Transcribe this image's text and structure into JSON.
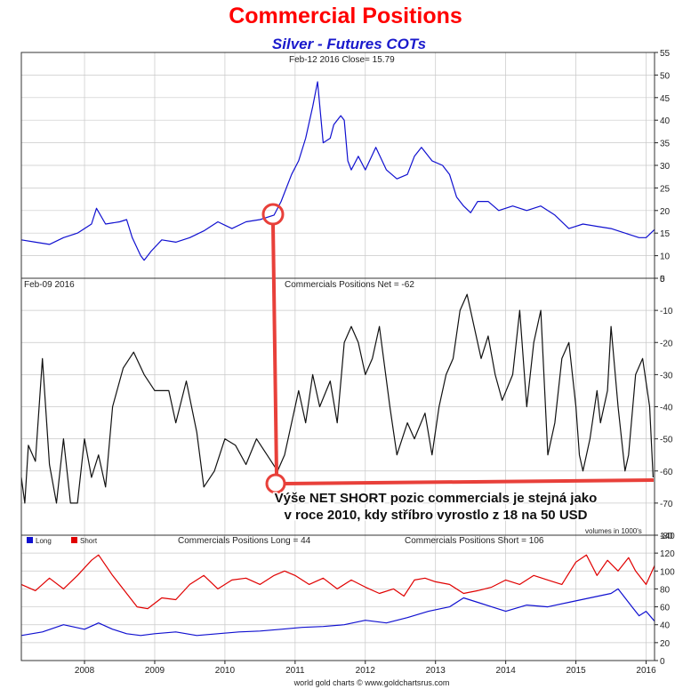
{
  "page_title": "Commercial Positions",
  "page_subtitle": "Silver - Futures COTs",
  "footer": "world gold charts © www.goldchartsrus.com",
  "colors": {
    "price": "#1010d0",
    "net": "#111111",
    "long": "#1010d0",
    "short": "#e00000",
    "annotation": "#e8403a",
    "grid": "#c8c8c8"
  },
  "chart_data": [
    {
      "type": "line",
      "header": "Feb-12  2016   Close= 15.79",
      "ylim": [
        5,
        55
      ],
      "yticks": [
        5,
        10,
        15,
        20,
        25,
        30,
        35,
        40,
        45,
        50,
        55
      ],
      "series": [
        {
          "values": [
            [
              2007.1,
              13.5
            ],
            [
              2007.3,
              13
            ],
            [
              2007.5,
              12.5
            ],
            [
              2007.7,
              14
            ],
            [
              2007.9,
              15
            ],
            [
              2008.1,
              17
            ],
            [
              2008.17,
              20.5
            ],
            [
              2008.3,
              17
            ],
            [
              2008.5,
              17.5
            ],
            [
              2008.6,
              18
            ],
            [
              2008.68,
              14
            ],
            [
              2008.8,
              10
            ],
            [
              2008.85,
              9
            ],
            [
              2008.95,
              11
            ],
            [
              2009.1,
              13.5
            ],
            [
              2009.3,
              13
            ],
            [
              2009.5,
              14
            ],
            [
              2009.7,
              15.5
            ],
            [
              2009.9,
              17.5
            ],
            [
              2010.1,
              16
            ],
            [
              2010.3,
              17.5
            ],
            [
              2010.5,
              18
            ],
            [
              2010.7,
              19
            ],
            [
              2010.8,
              22
            ],
            [
              2010.95,
              28
            ],
            [
              2011.05,
              31
            ],
            [
              2011.15,
              36
            ],
            [
              2011.25,
              43
            ],
            [
              2011.32,
              48.5
            ],
            [
              2011.4,
              35
            ],
            [
              2011.5,
              36
            ],
            [
              2011.55,
              39
            ],
            [
              2011.65,
              41
            ],
            [
              2011.7,
              40
            ],
            [
              2011.75,
              31
            ],
            [
              2011.8,
              29
            ],
            [
              2011.9,
              32
            ],
            [
              2012,
              29
            ],
            [
              2012.15,
              34
            ],
            [
              2012.3,
              29
            ],
            [
              2012.45,
              27
            ],
            [
              2012.6,
              28
            ],
            [
              2012.7,
              32
            ],
            [
              2012.8,
              34
            ],
            [
              2012.95,
              31
            ],
            [
              2013.1,
              30
            ],
            [
              2013.2,
              28
            ],
            [
              2013.3,
              23
            ],
            [
              2013.4,
              21
            ],
            [
              2013.5,
              19.5
            ],
            [
              2013.6,
              22
            ],
            [
              2013.75,
              22
            ],
            [
              2013.9,
              20
            ],
            [
              2014.1,
              21
            ],
            [
              2014.3,
              20
            ],
            [
              2014.5,
              21
            ],
            [
              2014.7,
              19
            ],
            [
              2014.9,
              16
            ],
            [
              2015.1,
              17
            ],
            [
              2015.3,
              16.5
            ],
            [
              2015.5,
              16
            ],
            [
              2015.7,
              15
            ],
            [
              2015.9,
              14
            ],
            [
              2016.0,
              14
            ],
            [
              2016.12,
              15.79
            ]
          ]
        }
      ]
    },
    {
      "type": "line",
      "header": "Feb-09  2016",
      "title": "Commercials Positions Net = -62",
      "units_note": "volumes in 1000's",
      "ylim": [
        -80,
        0
      ],
      "yticks": [
        0,
        -10,
        -20,
        -30,
        -40,
        -50,
        -60,
        -70,
        -80
      ],
      "series": [
        {
          "values": [
            [
              2007.1,
              -62
            ],
            [
              2007.15,
              -70
            ],
            [
              2007.2,
              -52
            ],
            [
              2007.3,
              -57
            ],
            [
              2007.4,
              -25
            ],
            [
              2007.5,
              -58
            ],
            [
              2007.6,
              -70
            ],
            [
              2007.7,
              -50
            ],
            [
              2007.8,
              -70
            ],
            [
              2007.9,
              -70
            ],
            [
              2008.0,
              -50
            ],
            [
              2008.1,
              -62
            ],
            [
              2008.2,
              -55
            ],
            [
              2008.3,
              -65
            ],
            [
              2008.4,
              -40
            ],
            [
              2008.55,
              -28
            ],
            [
              2008.7,
              -23
            ],
            [
              2008.85,
              -30
            ],
            [
              2009.0,
              -35
            ],
            [
              2009.2,
              -35
            ],
            [
              2009.3,
              -45
            ],
            [
              2009.45,
              -32
            ],
            [
              2009.6,
              -48
            ],
            [
              2009.7,
              -65
            ],
            [
              2009.85,
              -60
            ],
            [
              2010.0,
              -50
            ],
            [
              2010.15,
              -52
            ],
            [
              2010.3,
              -58
            ],
            [
              2010.45,
              -50
            ],
            [
              2010.6,
              -55
            ],
            [
              2010.75,
              -60
            ],
            [
              2010.85,
              -55
            ],
            [
              2010.95,
              -45
            ],
            [
              2011.05,
              -35
            ],
            [
              2011.15,
              -45
            ],
            [
              2011.25,
              -30
            ],
            [
              2011.35,
              -40
            ],
            [
              2011.5,
              -32
            ],
            [
              2011.6,
              -45
            ],
            [
              2011.7,
              -20
            ],
            [
              2011.8,
              -15
            ],
            [
              2011.9,
              -20
            ],
            [
              2012.0,
              -30
            ],
            [
              2012.1,
              -25
            ],
            [
              2012.2,
              -15
            ],
            [
              2012.35,
              -40
            ],
            [
              2012.45,
              -55
            ],
            [
              2012.6,
              -45
            ],
            [
              2012.7,
              -50
            ],
            [
              2012.85,
              -42
            ],
            [
              2012.95,
              -55
            ],
            [
              2013.05,
              -40
            ],
            [
              2013.15,
              -30
            ],
            [
              2013.25,
              -25
            ],
            [
              2013.35,
              -10
            ],
            [
              2013.45,
              -5
            ],
            [
              2013.55,
              -15
            ],
            [
              2013.65,
              -25
            ],
            [
              2013.75,
              -18
            ],
            [
              2013.85,
              -30
            ],
            [
              2013.95,
              -38
            ],
            [
              2014.1,
              -30
            ],
            [
              2014.2,
              -10
            ],
            [
              2014.3,
              -40
            ],
            [
              2014.4,
              -20
            ],
            [
              2014.5,
              -10
            ],
            [
              2014.6,
              -55
            ],
            [
              2014.7,
              -45
            ],
            [
              2014.8,
              -25
            ],
            [
              2014.9,
              -20
            ],
            [
              2015.0,
              -40
            ],
            [
              2015.05,
              -55
            ],
            [
              2015.1,
              -60
            ],
            [
              2015.2,
              -50
            ],
            [
              2015.3,
              -35
            ],
            [
              2015.35,
              -45
            ],
            [
              2015.45,
              -35
            ],
            [
              2015.5,
              -15
            ],
            [
              2015.6,
              -40
            ],
            [
              2015.7,
              -60
            ],
            [
              2015.75,
              -55
            ],
            [
              2015.85,
              -30
            ],
            [
              2015.95,
              -25
            ],
            [
              2016.05,
              -40
            ],
            [
              2016.1,
              -62
            ]
          ]
        }
      ]
    },
    {
      "type": "line",
      "legend": [
        "Long",
        "Short"
      ],
      "long_title": "Commercials Positions Long = 44",
      "short_title": "Commercials Positions Short = 106",
      "ylim": [
        0,
        140
      ],
      "yticks": [
        0,
        20,
        40,
        60,
        80,
        100,
        120,
        140
      ],
      "xlim": [
        2007.1,
        2016.12
      ],
      "xticks": [
        "2008",
        "2009",
        "2010",
        "2011",
        "2012",
        "2013",
        "2014",
        "2015",
        "2016"
      ],
      "series": [
        {
          "name": "Long",
          "values": [
            [
              2007.1,
              28
            ],
            [
              2007.4,
              32
            ],
            [
              2007.7,
              40
            ],
            [
              2008.0,
              35
            ],
            [
              2008.2,
              42
            ],
            [
              2008.4,
              35
            ],
            [
              2008.6,
              30
            ],
            [
              2008.8,
              28
            ],
            [
              2009.0,
              30
            ],
            [
              2009.3,
              32
            ],
            [
              2009.6,
              28
            ],
            [
              2009.9,
              30
            ],
            [
              2010.2,
              32
            ],
            [
              2010.5,
              33
            ],
            [
              2010.8,
              35
            ],
            [
              2011.1,
              37
            ],
            [
              2011.4,
              38
            ],
            [
              2011.7,
              40
            ],
            [
              2012.0,
              45
            ],
            [
              2012.3,
              42
            ],
            [
              2012.6,
              48
            ],
            [
              2012.9,
              55
            ],
            [
              2013.2,
              60
            ],
            [
              2013.4,
              70
            ],
            [
              2013.6,
              65
            ],
            [
              2013.8,
              60
            ],
            [
              2014.0,
              55
            ],
            [
              2014.3,
              62
            ],
            [
              2014.6,
              60
            ],
            [
              2014.9,
              65
            ],
            [
              2015.2,
              70
            ],
            [
              2015.5,
              75
            ],
            [
              2015.6,
              80
            ],
            [
              2015.8,
              60
            ],
            [
              2015.9,
              50
            ],
            [
              2016.0,
              55
            ],
            [
              2016.12,
              44
            ]
          ]
        },
        {
          "name": "Short",
          "values": [
            [
              2007.1,
              85
            ],
            [
              2007.3,
              78
            ],
            [
              2007.5,
              92
            ],
            [
              2007.7,
              80
            ],
            [
              2007.9,
              95
            ],
            [
              2008.1,
              112
            ],
            [
              2008.2,
              118
            ],
            [
              2008.4,
              95
            ],
            [
              2008.6,
              75
            ],
            [
              2008.75,
              60
            ],
            [
              2008.9,
              58
            ],
            [
              2009.1,
              70
            ],
            [
              2009.3,
              68
            ],
            [
              2009.5,
              85
            ],
            [
              2009.7,
              95
            ],
            [
              2009.9,
              80
            ],
            [
              2010.1,
              90
            ],
            [
              2010.3,
              92
            ],
            [
              2010.5,
              85
            ],
            [
              2010.7,
              95
            ],
            [
              2010.85,
              100
            ],
            [
              2011.0,
              95
            ],
            [
              2011.2,
              85
            ],
            [
              2011.4,
              92
            ],
            [
              2011.6,
              80
            ],
            [
              2011.8,
              90
            ],
            [
              2012.0,
              82
            ],
            [
              2012.2,
              75
            ],
            [
              2012.4,
              80
            ],
            [
              2012.55,
              72
            ],
            [
              2012.7,
              90
            ],
            [
              2012.85,
              92
            ],
            [
              2013.0,
              88
            ],
            [
              2013.2,
              85
            ],
            [
              2013.4,
              75
            ],
            [
              2013.6,
              78
            ],
            [
              2013.8,
              82
            ],
            [
              2014.0,
              90
            ],
            [
              2014.2,
              85
            ],
            [
              2014.4,
              95
            ],
            [
              2014.6,
              90
            ],
            [
              2014.8,
              85
            ],
            [
              2015.0,
              110
            ],
            [
              2015.15,
              118
            ],
            [
              2015.3,
              95
            ],
            [
              2015.45,
              112
            ],
            [
              2015.6,
              100
            ],
            [
              2015.75,
              115
            ],
            [
              2015.85,
              100
            ],
            [
              2016.0,
              85
            ],
            [
              2016.12,
              106
            ]
          ]
        }
      ]
    }
  ],
  "annotation": {
    "line1": "Výše NET SHORT pozic commercials je stejná jako",
    "line2": "v roce 2010, kdy stříbro vyrostlo z 18 na 50 USD"
  }
}
